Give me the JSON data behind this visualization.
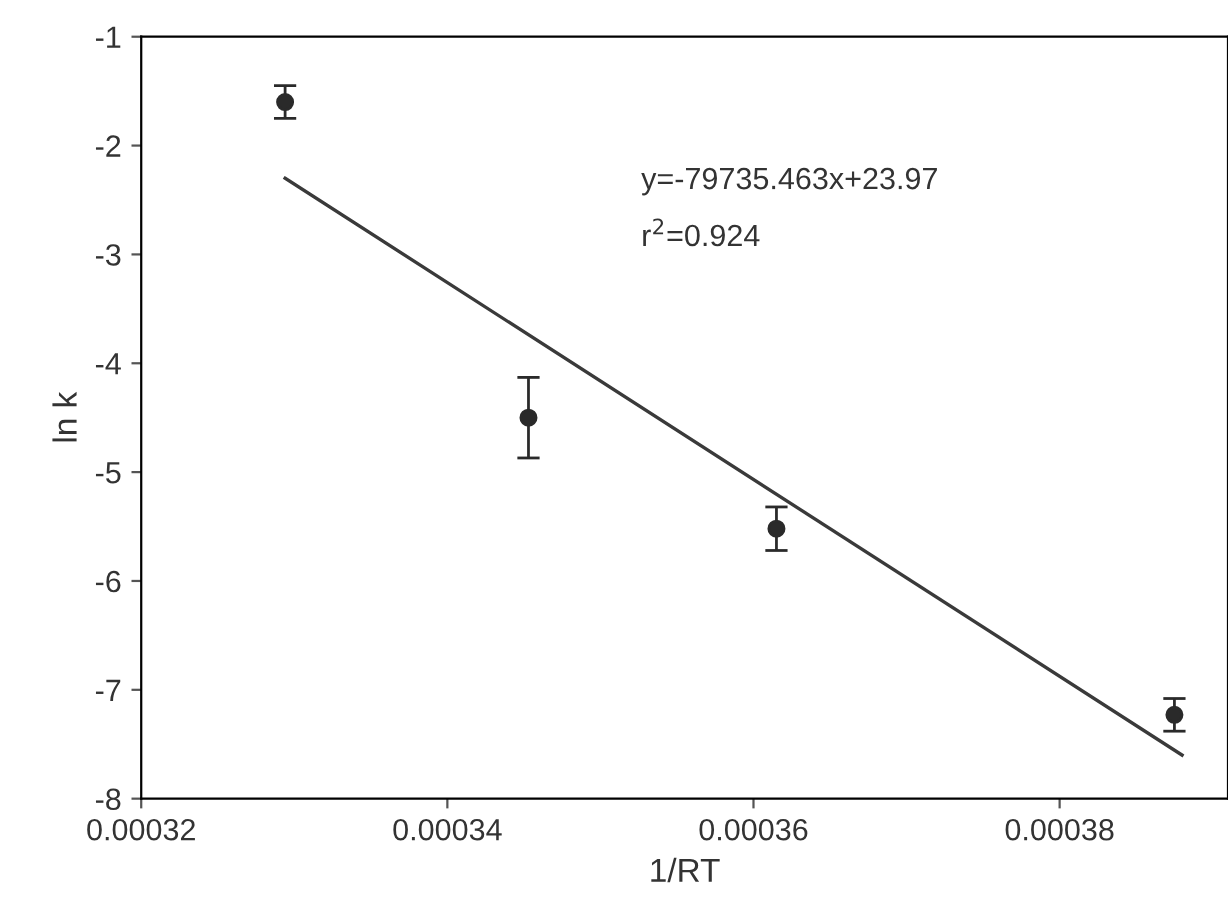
{
  "chart_data": {
    "type": "scatter",
    "xlabel": "1/RT",
    "ylabel": "ln k",
    "xlim": [
      0.00032,
      0.000391
    ],
    "ylim": [
      -8,
      -1
    ],
    "xticks": [
      0.00032,
      0.00034,
      0.00036,
      0.00038
    ],
    "yticks": [
      -8,
      -7,
      -6,
      -5,
      -4,
      -3,
      -2,
      -1
    ],
    "grid": false,
    "series": [
      {
        "marker": "circle",
        "color": "#2a2a2a",
        "x": [
          0.0003294,
          0.0003453,
          0.0003615,
          0.0003875
        ],
        "values": [
          -1.6,
          -4.5,
          -5.52,
          -7.23
        ],
        "errors": [
          0.15,
          0.37,
          0.2,
          0.15
        ]
      },
      {
        "type": "line",
        "marker": "none",
        "color": "#3a3a3a",
        "x": [
          0.0003294,
          0.000388
        ],
        "values": [
          -2.3,
          -7.6
        ]
      }
    ],
    "annotations": [
      "y=-79735.463x+23.97",
      "r$^{2}$=0.924"
    ]
  }
}
